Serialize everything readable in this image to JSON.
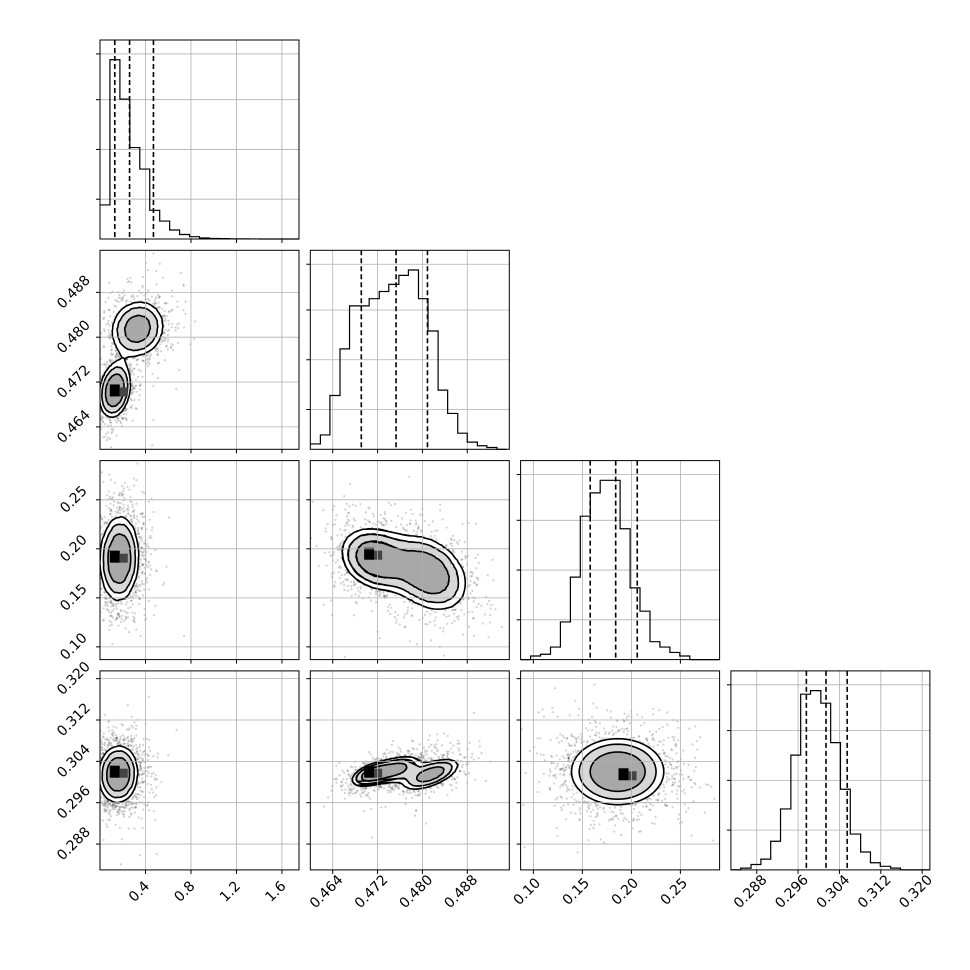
{
  "chart_data": {
    "type": "corner",
    "parameters": [
      {
        "range": [
          0.0,
          1.75
        ],
        "ticks": [
          0.4,
          0.8,
          1.2,
          1.6
        ],
        "tick_labels": [
          "0.4",
          "0.8",
          "1.2",
          "1.6"
        ],
        "quantiles": [
          0.13,
          0.26,
          0.47
        ]
      },
      {
        "range": [
          0.46,
          0.4955
        ],
        "ticks": [
          0.464,
          0.472,
          0.48,
          0.488
        ],
        "tick_labels": [
          "0.464",
          "0.472",
          "0.480",
          "0.488"
        ],
        "quantiles": [
          0.4691,
          0.4753,
          0.4809
        ]
      },
      {
        "range": [
          0.087,
          0.29
        ],
        "ticks": [
          0.1,
          0.15,
          0.2,
          0.25
        ],
        "tick_labels": [
          "0.10",
          "0.15",
          "0.20",
          "0.25"
        ],
        "quantiles": [
          0.158,
          0.184,
          0.206
        ]
      },
      {
        "range": [
          0.283,
          0.3215
        ],
        "ticks": [
          0.288,
          0.296,
          0.304,
          0.312,
          0.32
        ],
        "tick_labels": [
          "0.288",
          "0.296",
          "0.304",
          "0.312",
          "0.320"
        ],
        "quantiles": [
          0.2976,
          0.3014,
          0.3055
        ]
      }
    ],
    "histograms": [
      {
        "bin_edges": [
          0.0,
          0.0875,
          0.175,
          0.2625,
          0.35,
          0.4375,
          0.525,
          0.6125,
          0.7,
          0.7875,
          0.875,
          0.9625,
          1.05,
          1.1375,
          1.225,
          1.3125,
          1.4,
          1.4875,
          1.575,
          1.6625,
          1.75
        ],
        "counts": [
          0.19,
          1.0,
          0.78,
          0.51,
          0.39,
          0.16,
          0.1,
          0.05,
          0.025,
          0.013,
          0.006,
          0.003,
          0.002,
          0.001,
          0.0005,
          0.0003,
          0.0002,
          0.0001,
          0.0,
          0.0
        ]
      },
      {
        "bin_edges": [
          0.46,
          0.4618,
          0.4635,
          0.4653,
          0.467,
          0.4688,
          0.4705,
          0.4723,
          0.474,
          0.4758,
          0.4775,
          0.4793,
          0.481,
          0.4828,
          0.4845,
          0.4863,
          0.488,
          0.4898,
          0.4915,
          0.4933,
          0.495
        ],
        "counts": [
          0.03,
          0.08,
          0.3,
          0.56,
          0.8,
          0.8,
          0.84,
          0.88,
          0.92,
          0.97,
          1.0,
          0.84,
          0.66,
          0.33,
          0.2,
          0.09,
          0.04,
          0.02,
          0.01,
          0.0
        ]
      },
      {
        "bin_edges": [
          0.087,
          0.0972,
          0.1073,
          0.1175,
          0.1276,
          0.1378,
          0.1479,
          0.1581,
          0.1682,
          0.1784,
          0.1885,
          0.1987,
          0.2088,
          0.219,
          0.2291,
          0.2393,
          0.2494,
          0.2596,
          0.2697,
          0.2799,
          0.29
        ],
        "counts": [
          0.0,
          0.02,
          0.03,
          0.07,
          0.21,
          0.46,
          0.8,
          0.93,
          1.0,
          1.0,
          0.73,
          0.4,
          0.27,
          0.1,
          0.07,
          0.04,
          0.02,
          0.0,
          0.0,
          0.0
        ]
      },
      {
        "bin_edges": [
          0.283,
          0.2849,
          0.2869,
          0.2888,
          0.2907,
          0.2926,
          0.2946,
          0.2965,
          0.2984,
          0.3004,
          0.3023,
          0.3042,
          0.3061,
          0.3081,
          0.31,
          0.3119,
          0.3139,
          0.3158,
          0.3177,
          0.3196,
          0.3215
        ],
        "counts": [
          0.0,
          0.01,
          0.03,
          0.06,
          0.16,
          0.34,
          0.64,
          0.98,
          1.0,
          0.93,
          0.71,
          0.45,
          0.2,
          0.1,
          0.04,
          0.02,
          0.01,
          0.0,
          0.0,
          0.0
        ]
      }
    ],
    "pairs": [
      {
        "i": 1,
        "j": 0,
        "modes": [
          {
            "x": 0.13,
            "y": 0.4705,
            "sx": 0.08,
            "sy": 0.0028,
            "rho": 0.2,
            "w": 0.55
          },
          {
            "x": 0.33,
            "y": 0.4815,
            "sx": 0.14,
            "sy": 0.003,
            "rho": 0.1,
            "w": 0.45
          }
        ],
        "levels": [
          0.88,
          0.6,
          0.3
        ],
        "peak": {
          "x": 0.13,
          "y": 0.4705
        }
      },
      {
        "i": 2,
        "j": 0,
        "modes": [
          {
            "x": 0.17,
            "y": 0.19,
            "sx": 0.1,
            "sy": 0.025,
            "rho": 0.05,
            "w": 1.0
          }
        ],
        "levels": [
          0.88,
          0.6,
          0.3
        ],
        "peak": {
          "x": 0.13,
          "y": 0.192
        }
      },
      {
        "i": 2,
        "j": 1,
        "modes": [
          {
            "x": 0.4715,
            "y": 0.19,
            "sx": 0.0035,
            "sy": 0.018,
            "rho": -0.2,
            "w": 0.5
          },
          {
            "x": 0.481,
            "y": 0.175,
            "sx": 0.004,
            "sy": 0.022,
            "rho": -0.3,
            "w": 0.5
          }
        ],
        "levels": [
          0.88,
          0.6,
          0.3
        ],
        "peak": {
          "x": 0.4705,
          "y": 0.195
        }
      },
      {
        "i": 3,
        "j": 0,
        "modes": [
          {
            "x": 0.16,
            "y": 0.3015,
            "sx": 0.1,
            "sy": 0.0032,
            "rho": 0.05,
            "w": 1.0
          }
        ],
        "levels": [
          0.88,
          0.6,
          0.3
        ],
        "peak": {
          "x": 0.13,
          "y": 0.302
        }
      },
      {
        "i": 3,
        "j": 1,
        "modes": [
          {
            "x": 0.471,
            "y": 0.3015,
            "sx": 0.0022,
            "sy": 0.0014,
            "rho": 0.5,
            "w": 0.35
          },
          {
            "x": 0.4755,
            "y": 0.3025,
            "sx": 0.0025,
            "sy": 0.0016,
            "rho": 0.5,
            "w": 0.3
          },
          {
            "x": 0.4815,
            "y": 0.3015,
            "sx": 0.003,
            "sy": 0.0018,
            "rho": 0.6,
            "w": 0.35
          }
        ],
        "levels": [
          0.88,
          0.6,
          0.3
        ],
        "peak": {
          "x": 0.4705,
          "y": 0.302
        }
      },
      {
        "i": 3,
        "j": 2,
        "modes": [
          {
            "x": 0.186,
            "y": 0.302,
            "sx": 0.028,
            "sy": 0.0038,
            "rho": 0.0,
            "w": 1.0
          }
        ],
        "levels": [
          0.88,
          0.6,
          0.3
        ],
        "peak": {
          "x": 0.192,
          "y": 0.3015
        }
      }
    ],
    "colors": {
      "line": "#000000",
      "points": "#000000",
      "fill_min": "#f0f0f0",
      "fill_max": "#000000",
      "grid": "#b0b0b0"
    },
    "grid": true
  }
}
